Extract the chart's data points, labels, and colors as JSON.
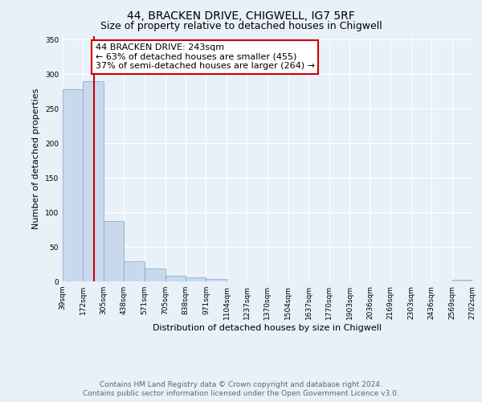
{
  "title": "44, BRACKEN DRIVE, CHIGWELL, IG7 5RF",
  "subtitle": "Size of property relative to detached houses in Chigwell",
  "xlabel": "Distribution of detached houses by size in Chigwell",
  "ylabel": "Number of detached properties",
  "bin_edges": [
    39,
    172,
    305,
    438,
    571,
    705,
    838,
    971,
    1104,
    1237,
    1370,
    1504,
    1637,
    1770,
    1903,
    2036,
    2169,
    2303,
    2436,
    2569,
    2702
  ],
  "bin_heights": [
    278,
    290,
    87,
    29,
    19,
    8,
    6,
    3,
    0,
    0,
    0,
    0,
    0,
    0,
    0,
    0,
    0,
    0,
    0,
    2
  ],
  "bar_color": "#c9d9ed",
  "bar_edge_color": "#7aa3c8",
  "property_size": 243,
  "red_line_color": "#cc0000",
  "annotation_line1": "44 BRACKEN DRIVE: 243sqm",
  "annotation_line2": "← 63% of detached houses are smaller (455)",
  "annotation_line3": "37% of semi-detached houses are larger (264) →",
  "annotation_box_edge": "#cc0000",
  "annotation_box_face": "white",
  "ylim": [
    0,
    355
  ],
  "yticks": [
    0,
    50,
    100,
    150,
    200,
    250,
    300,
    350
  ],
  "tick_labels": [
    "39sqm",
    "172sqm",
    "305sqm",
    "438sqm",
    "571sqm",
    "705sqm",
    "838sqm",
    "971sqm",
    "1104sqm",
    "1237sqm",
    "1370sqm",
    "1504sqm",
    "1637sqm",
    "1770sqm",
    "1903sqm",
    "2036sqm",
    "2169sqm",
    "2303sqm",
    "2436sqm",
    "2569sqm",
    "2702sqm"
  ],
  "footer_line1": "Contains HM Land Registry data © Crown copyright and database right 2024.",
  "footer_line2": "Contains public sector information licensed under the Open Government Licence v3.0.",
  "background_color": "#e8f0f8",
  "grid_color": "#ffffff",
  "title_fontsize": 10,
  "subtitle_fontsize": 9,
  "axis_label_fontsize": 8,
  "tick_fontsize": 6.5,
  "annotation_fontsize": 8,
  "footer_fontsize": 6.5
}
